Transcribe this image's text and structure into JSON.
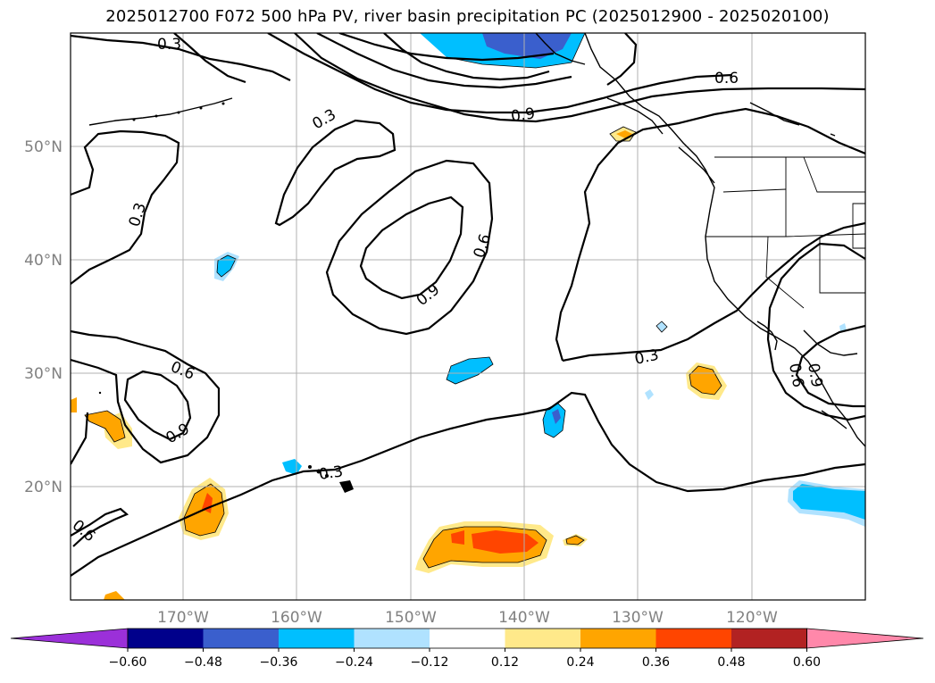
{
  "title": "2025012700 F072 500 hPa PV, river basin precipitation PC (2025012900 - 2025020100)",
  "chart_data": {
    "type": "contour map",
    "lon_range": [
      -180,
      -110
    ],
    "lat_range": [
      10,
      60
    ],
    "x_ticks": [
      "170°W",
      "160°W",
      "150°W",
      "140°W",
      "130°W",
      "120°W"
    ],
    "y_ticks": [
      "20°N",
      "30°N",
      "40°N",
      "50°N"
    ],
    "grid": true,
    "contour_labels": [
      "0.3",
      "0.6",
      "0.9"
    ],
    "colorbar": {
      "extend": "both",
      "tick_labels": [
        "−0.60",
        "−0.48",
        "−0.36",
        "−0.24",
        "−0.12",
        "0.12",
        "0.24",
        "0.36",
        "0.48",
        "0.60"
      ],
      "colors": [
        "#9b30d9",
        "#00008b",
        "#3a5fcd",
        "#00bfff",
        "#b0e2ff",
        "#ffffff",
        "#ffe98a",
        "#ffa500",
        "#ff4500",
        "#b22222",
        "#ff88aa"
      ]
    }
  }
}
